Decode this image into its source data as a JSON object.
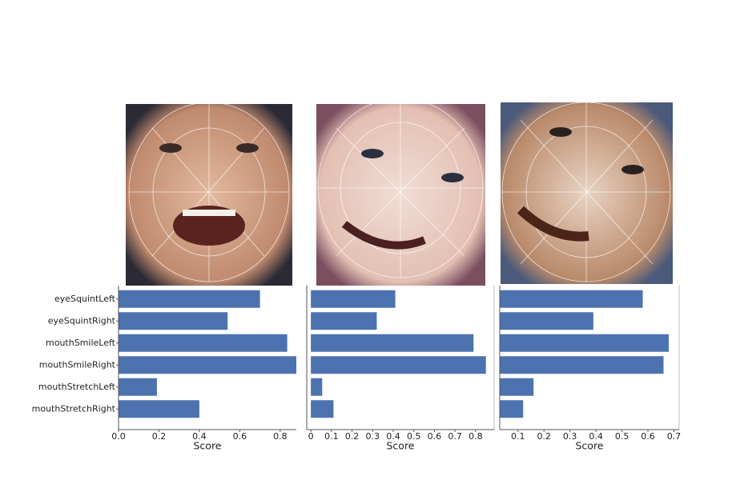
{
  "chart_data": [
    {
      "type": "barh",
      "categories": [
        "eyeSquintLeft",
        "eyeSquintRight",
        "mouthSmileLeft",
        "mouthSmileRight",
        "mouthStretchLeft",
        "mouthStretchRight"
      ],
      "values": [
        0.7,
        0.54,
        0.835,
        0.88,
        0.19,
        0.4
      ],
      "color": "#4c72b0",
      "xlabel": "Score",
      "xlim": [
        0,
        0.88
      ],
      "xticks": [
        {
          "value": 0,
          "label": "0.0"
        },
        0.2,
        0.4,
        0.6,
        0.8
      ]
    },
    {
      "type": "barh",
      "values": [
        0.41,
        0.32,
        0.79,
        0.85,
        0.055,
        0.11
      ],
      "color": "#4c72b0",
      "xlabel": "Score",
      "xlim": [
        -0.02,
        0.89
      ],
      "xticks": [
        0,
        0.1,
        0.2,
        0.3,
        0.4,
        0.5,
        0.6,
        0.7,
        0.8
      ]
    },
    {
      "type": "barh",
      "values": [
        0.58,
        0.39,
        0.68,
        0.66,
        0.16,
        0.12
      ],
      "color": "#4c72b0",
      "xlabel": "Score",
      "xlim": [
        0.03,
        0.72
      ],
      "xticks": [
        0.1,
        0.2,
        0.3,
        0.4,
        0.5,
        0.6,
        0.7
      ]
    }
  ]
}
